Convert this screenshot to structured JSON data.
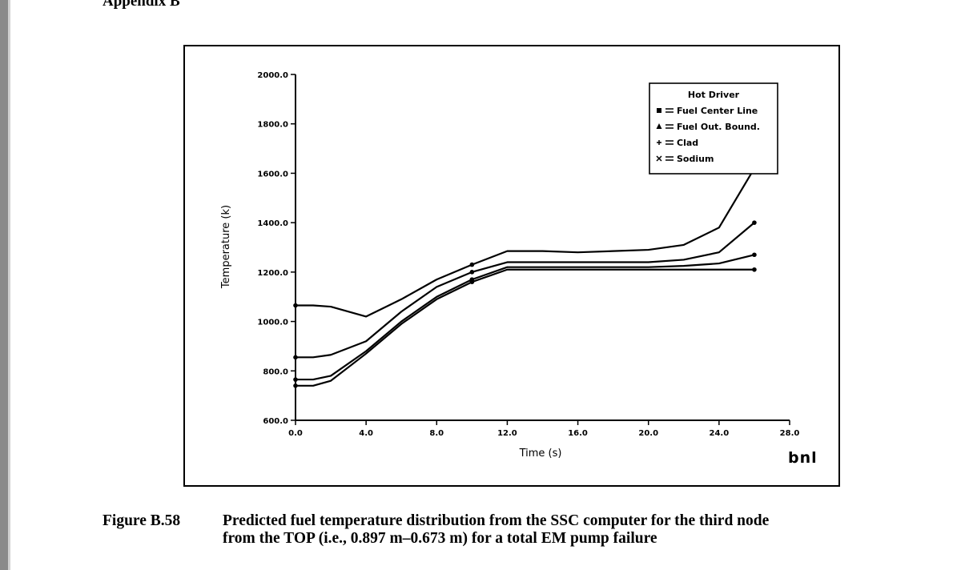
{
  "page": {
    "header": "Appendix B"
  },
  "caption": {
    "label": "Figure B.58",
    "line1": "Predicted fuel temperature distribution from the SSC computer for the third node",
    "line2": "from the TOP (i.e., 0.897 m–0.673 m) for a total EM pump failure"
  },
  "logo": {
    "text": "bnl"
  },
  "colors": {
    "ink": "#000000",
    "sidebar": "#8a8a8a"
  },
  "chart_data": {
    "type": "line",
    "title": "",
    "xlabel": "Time (s)",
    "ylabel": "Temperature (k)",
    "xlim": [
      0,
      28
    ],
    "ylim": [
      600,
      2000
    ],
    "xticks": [
      0,
      4,
      8,
      12,
      16,
      20,
      24,
      28
    ],
    "xtick_labels": [
      "0.0",
      "4.0",
      "8.0",
      "12.0",
      "16.0",
      "20.0",
      "24.0",
      "28.0"
    ],
    "yticks": [
      600,
      800,
      1000,
      1200,
      1400,
      1600,
      1800,
      2000
    ],
    "ytick_labels": [
      "600.0",
      "800.0",
      "1000.0",
      "1200.0",
      "1400.0",
      "1600.0",
      "1800.0",
      "2000.0"
    ],
    "grid": false,
    "legend": {
      "title": "Hot Driver",
      "position": "top-right"
    },
    "series": [
      {
        "name": "Fuel Center Line",
        "marker": "square",
        "x": [
          0,
          1,
          2,
          4,
          6,
          8,
          10,
          12,
          14,
          16,
          18,
          20,
          22,
          24,
          26
        ],
        "y": [
          1065,
          1065,
          1060,
          1020,
          1090,
          1170,
          1230,
          1285,
          1285,
          1280,
          1285,
          1290,
          1310,
          1380,
          1620
        ]
      },
      {
        "name": "Fuel Out. Bound.",
        "marker": "triangle",
        "x": [
          0,
          1,
          2,
          4,
          6,
          8,
          10,
          12,
          14,
          16,
          18,
          20,
          22,
          24,
          26
        ],
        "y": [
          855,
          855,
          865,
          920,
          1040,
          1140,
          1200,
          1240,
          1240,
          1240,
          1240,
          1240,
          1250,
          1280,
          1400
        ]
      },
      {
        "name": "Clad",
        "marker": "plus",
        "x": [
          0,
          1,
          2,
          4,
          6,
          8,
          10,
          12,
          14,
          16,
          18,
          20,
          22,
          24,
          26
        ],
        "y": [
          765,
          765,
          780,
          880,
          1000,
          1100,
          1170,
          1220,
          1220,
          1220,
          1220,
          1220,
          1225,
          1235,
          1270
        ]
      },
      {
        "name": "Sodium",
        "marker": "x",
        "x": [
          0,
          1,
          2,
          4,
          6,
          8,
          10,
          12,
          14,
          16,
          18,
          20,
          22,
          24,
          26
        ],
        "y": [
          740,
          740,
          760,
          870,
          990,
          1090,
          1160,
          1210,
          1210,
          1210,
          1210,
          1210,
          1210,
          1210,
          1210
        ]
      }
    ]
  }
}
